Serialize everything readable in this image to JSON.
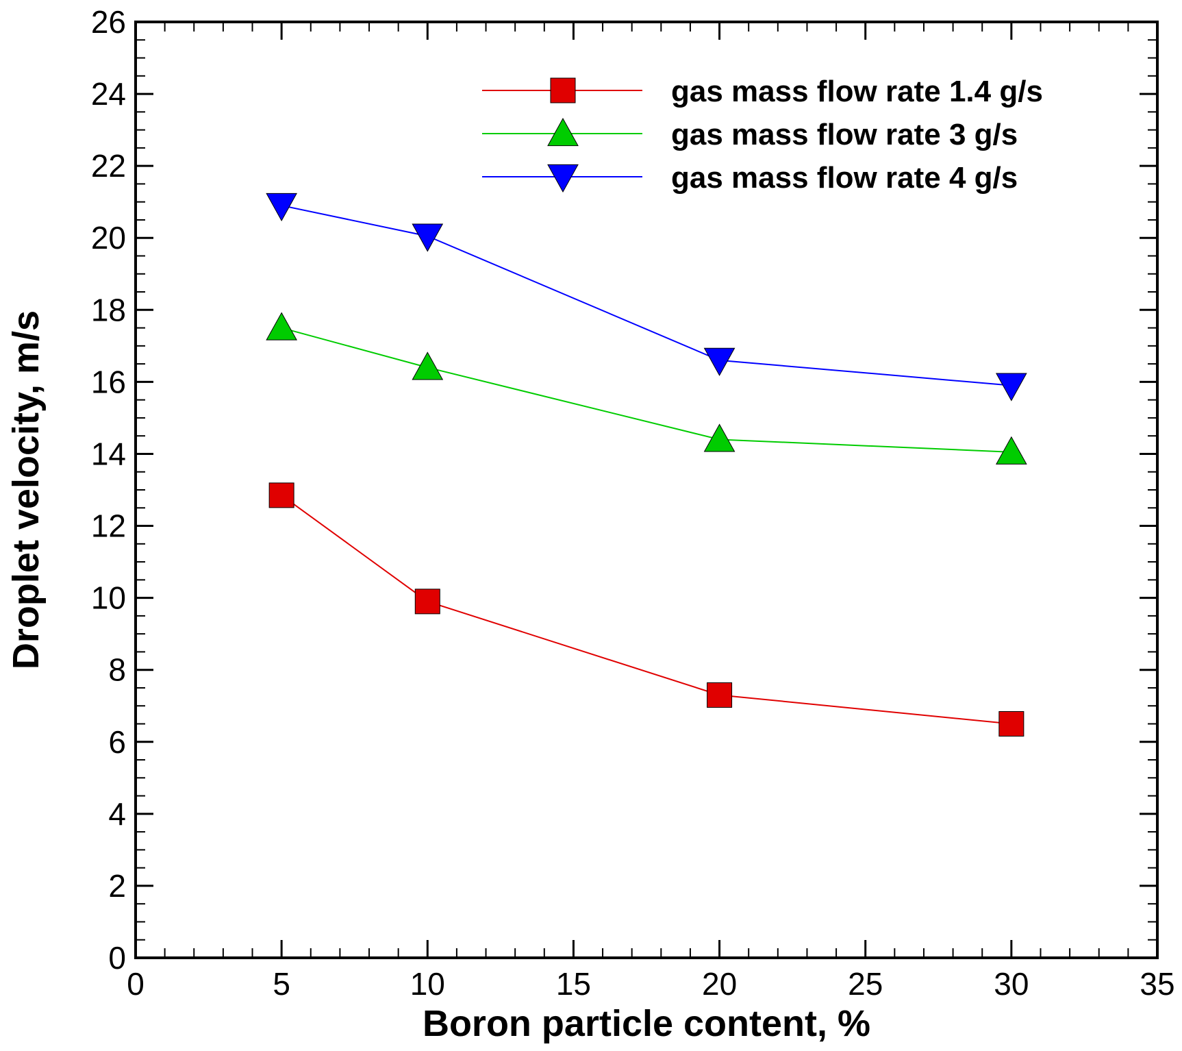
{
  "chart_data": {
    "type": "line",
    "xlabel": "Boron particle content, %",
    "ylabel": "Droplet velocity, m/s",
    "xlim": [
      0,
      35
    ],
    "ylim": [
      0,
      26
    ],
    "x_ticks": [
      0,
      5,
      10,
      15,
      20,
      25,
      30,
      35
    ],
    "y_ticks": [
      0,
      2,
      4,
      6,
      8,
      10,
      12,
      14,
      16,
      18,
      20,
      22,
      24,
      26
    ],
    "x_minor_step": 1,
    "y_minor_step": 0.5,
    "grid": false,
    "legend_position": "top-right",
    "x": [
      5,
      10,
      20,
      30
    ],
    "series": [
      {
        "name": "gas mass flow rate 1.4 g/s",
        "values": [
          12.85,
          9.9,
          7.3,
          6.5
        ],
        "color": "#e00000",
        "marker": "square"
      },
      {
        "name": "gas mass flow rate 3 g/s",
        "values": [
          17.5,
          16.4,
          14.4,
          14.05
        ],
        "color": "#00cc00",
        "marker": "triangle-up"
      },
      {
        "name": "gas mass flow rate 4 g/s",
        "values": [
          20.9,
          20.05,
          16.6,
          15.9
        ],
        "color": "#0000ff",
        "marker": "triangle-down"
      }
    ]
  }
}
